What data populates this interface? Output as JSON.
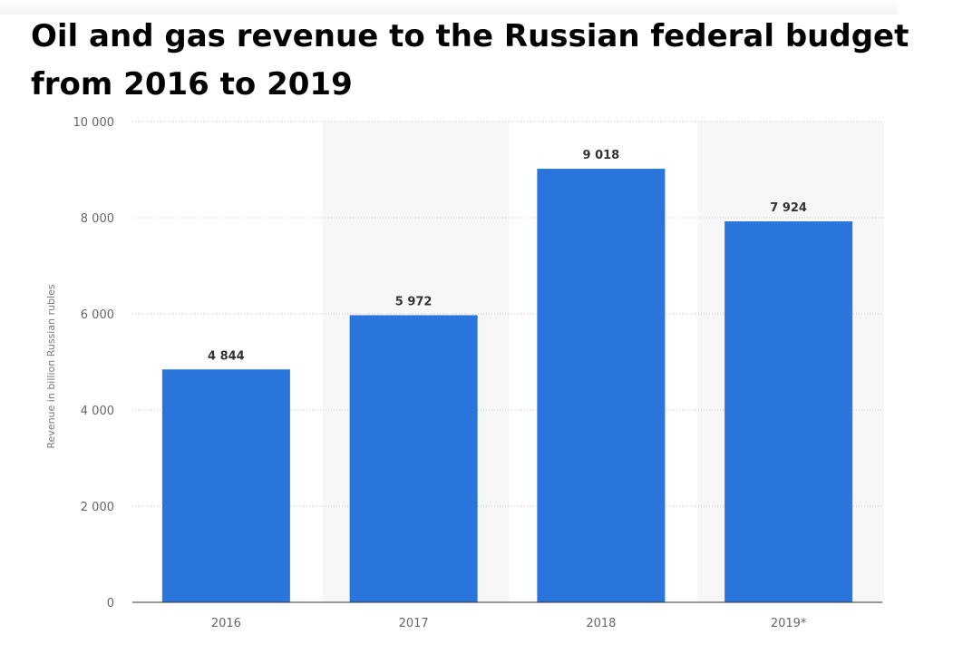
{
  "chart_data": {
    "type": "bar",
    "title": "Oil and gas revenue to the Russian federal budget from 2016 to 2019",
    "categories": [
      "2016",
      "2017",
      "2018",
      "2019*"
    ],
    "values": [
      4844,
      5972,
      9018,
      7924
    ],
    "value_labels": [
      "4 844",
      "5 972",
      "9 018",
      "7 924"
    ],
    "xlabel": "",
    "ylabel": "Revenue in billion Russian rubles",
    "ylim": [
      0,
      10000
    ],
    "yticks": [
      0,
      2000,
      4000,
      6000,
      8000,
      10000
    ],
    "ytick_labels": [
      "0",
      "2 000",
      "4 000",
      "6 000",
      "8 000",
      "10 000"
    ],
    "grid": true,
    "bar_color": "#2a75dc",
    "band_color": "#f7f7f7"
  }
}
